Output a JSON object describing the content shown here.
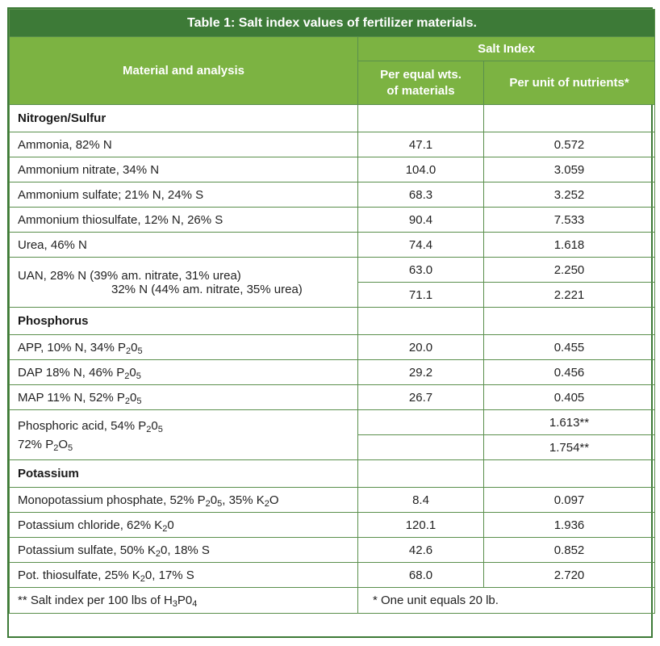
{
  "title": "Table 1: Salt index values of fertilizer materials.",
  "headers": {
    "material": "Material and analysis",
    "salt_index": "Salt Index",
    "per_weight": "Per equal wts. of materials",
    "per_nutrient": "Per unit of nutrients*"
  },
  "sections": {
    "nitrogen": "Nitrogen/Sulfur",
    "phosphorus": "Phosphorus",
    "potassium": "Potassium"
  },
  "rows": {
    "ammonia": {
      "name": "Ammonia, 82% N",
      "wt": "47.1",
      "unit": "0.572"
    },
    "ammonium_nitrate": {
      "name": "Ammonium nitrate, 34% N",
      "wt": "104.0",
      "unit": "3.059"
    },
    "ammonium_sulfate": {
      "name": "Ammonium sulfate; 21% N, 24% S",
      "wt": "68.3",
      "unit": "3.252"
    },
    "ammonium_thiosulfate": {
      "name": "Ammonium thiosulfate, 12% N, 26% S",
      "wt": "90.4",
      "unit": "7.533"
    },
    "urea": {
      "name": "Urea, 46% N",
      "wt": "74.4",
      "unit": "1.618"
    },
    "uan28": {
      "name": "UAN, 28% N (39% am. nitrate, 31% urea)",
      "wt": "63.0",
      "unit": "2.250"
    },
    "uan32": {
      "name": "32% N (44% am. nitrate, 35% urea)",
      "wt": "71.1",
      "unit": "2.221"
    },
    "app": {
      "name_pre": "APP, 10% N, 34% P",
      "name_sub1": "2",
      "name_mid": "0",
      "name_sub2": "5",
      "wt": "20.0",
      "unit": "0.455"
    },
    "dap": {
      "name_pre": "DAP 18% N, 46% P",
      "name_sub1": "2",
      "name_mid": "0",
      "name_sub2": "5",
      "wt": "29.2",
      "unit": "0.456"
    },
    "map": {
      "name_pre": "MAP 11% N, 52% P",
      "name_sub1": "2",
      "name_mid": "0",
      "name_sub2": "5",
      "wt": "26.7",
      "unit": "0.405"
    },
    "phos54": {
      "name_pre": "Phosphoric acid, 54% P",
      "name_sub1": "2",
      "name_mid": "0",
      "name_sub2": "5",
      "wt": "",
      "unit": "1.613**"
    },
    "phos72": {
      "name_pre": "72% P",
      "name_sub1": "2",
      "name_mid": "O",
      "name_sub2": "5",
      "wt": "",
      "unit": "1.754**"
    },
    "mkp": {
      "name_pre": "Monopotassium phosphate, 52% P",
      "name_sub1": "2",
      "name_mid": "0",
      "name_sub2": "5",
      "name_post": ", 35% K",
      "name_sub3": "2",
      "name_end": "O",
      "wt": "8.4",
      "unit": "0.097"
    },
    "kcl": {
      "name_pre": "Potassium chloride, 62% K",
      "name_sub1": "2",
      "name_mid": "0",
      "wt": "120.1",
      "unit": "1.936"
    },
    "k2so4": {
      "name_pre": "Potassium sulfate, 50% K",
      "name_sub1": "2",
      "name_mid": "0, 18% S",
      "wt": "42.6",
      "unit": "0.852"
    },
    "kts": {
      "name_pre": "Pot. thiosulfate, 25% K",
      "name_sub1": "2",
      "name_mid": "0, 17% S",
      "wt": "68.0",
      "unit": "2.720"
    }
  },
  "footnotes": {
    "left_pre": "** Salt index per 100 lbs of H",
    "left_sub1": "3",
    "left_mid": "P0",
    "left_sub2": "4",
    "right": "* One unit equals 20 lb."
  }
}
